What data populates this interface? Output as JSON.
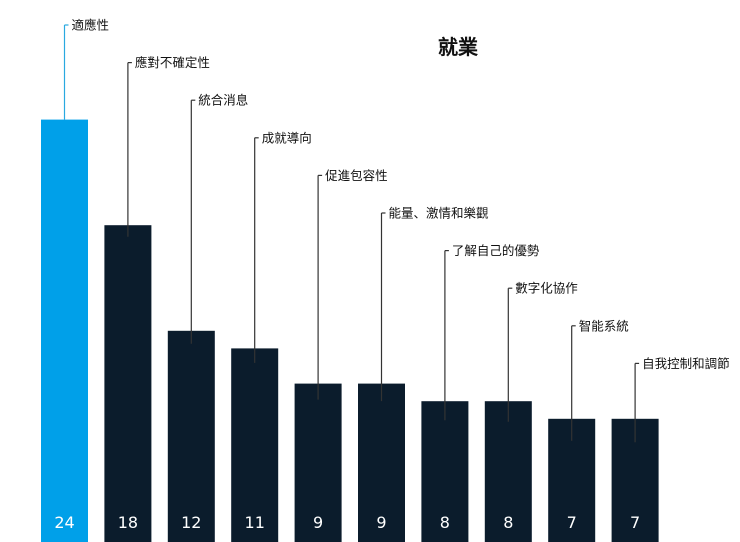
{
  "chart_data": {
    "type": "bar",
    "title": "就業",
    "xlabel": "",
    "ylabel": "",
    "ylim": [
      0,
      27.5
    ],
    "grid": false,
    "legend": "none",
    "categories": [
      "適應性",
      "應對不確定性",
      "統合消息",
      "成就導向",
      "促進包容性",
      "能量、激情和樂觀",
      "了解自己的優勢",
      "數字化協作",
      "智能系統",
      "自我控制和調節"
    ],
    "values": [
      24,
      18,
      12,
      11,
      9,
      9,
      8,
      8,
      7,
      7
    ],
    "value_labels": [
      "24",
      "18",
      "12",
      "11",
      "9",
      "9",
      "8",
      "8",
      "7",
      "7"
    ],
    "colors": {
      "highlight": "#00a0e9",
      "bar": "#0b1c2c",
      "leader_highlight": "#29a9e0",
      "leader": "#333333",
      "value_text": "#ffffff"
    }
  }
}
